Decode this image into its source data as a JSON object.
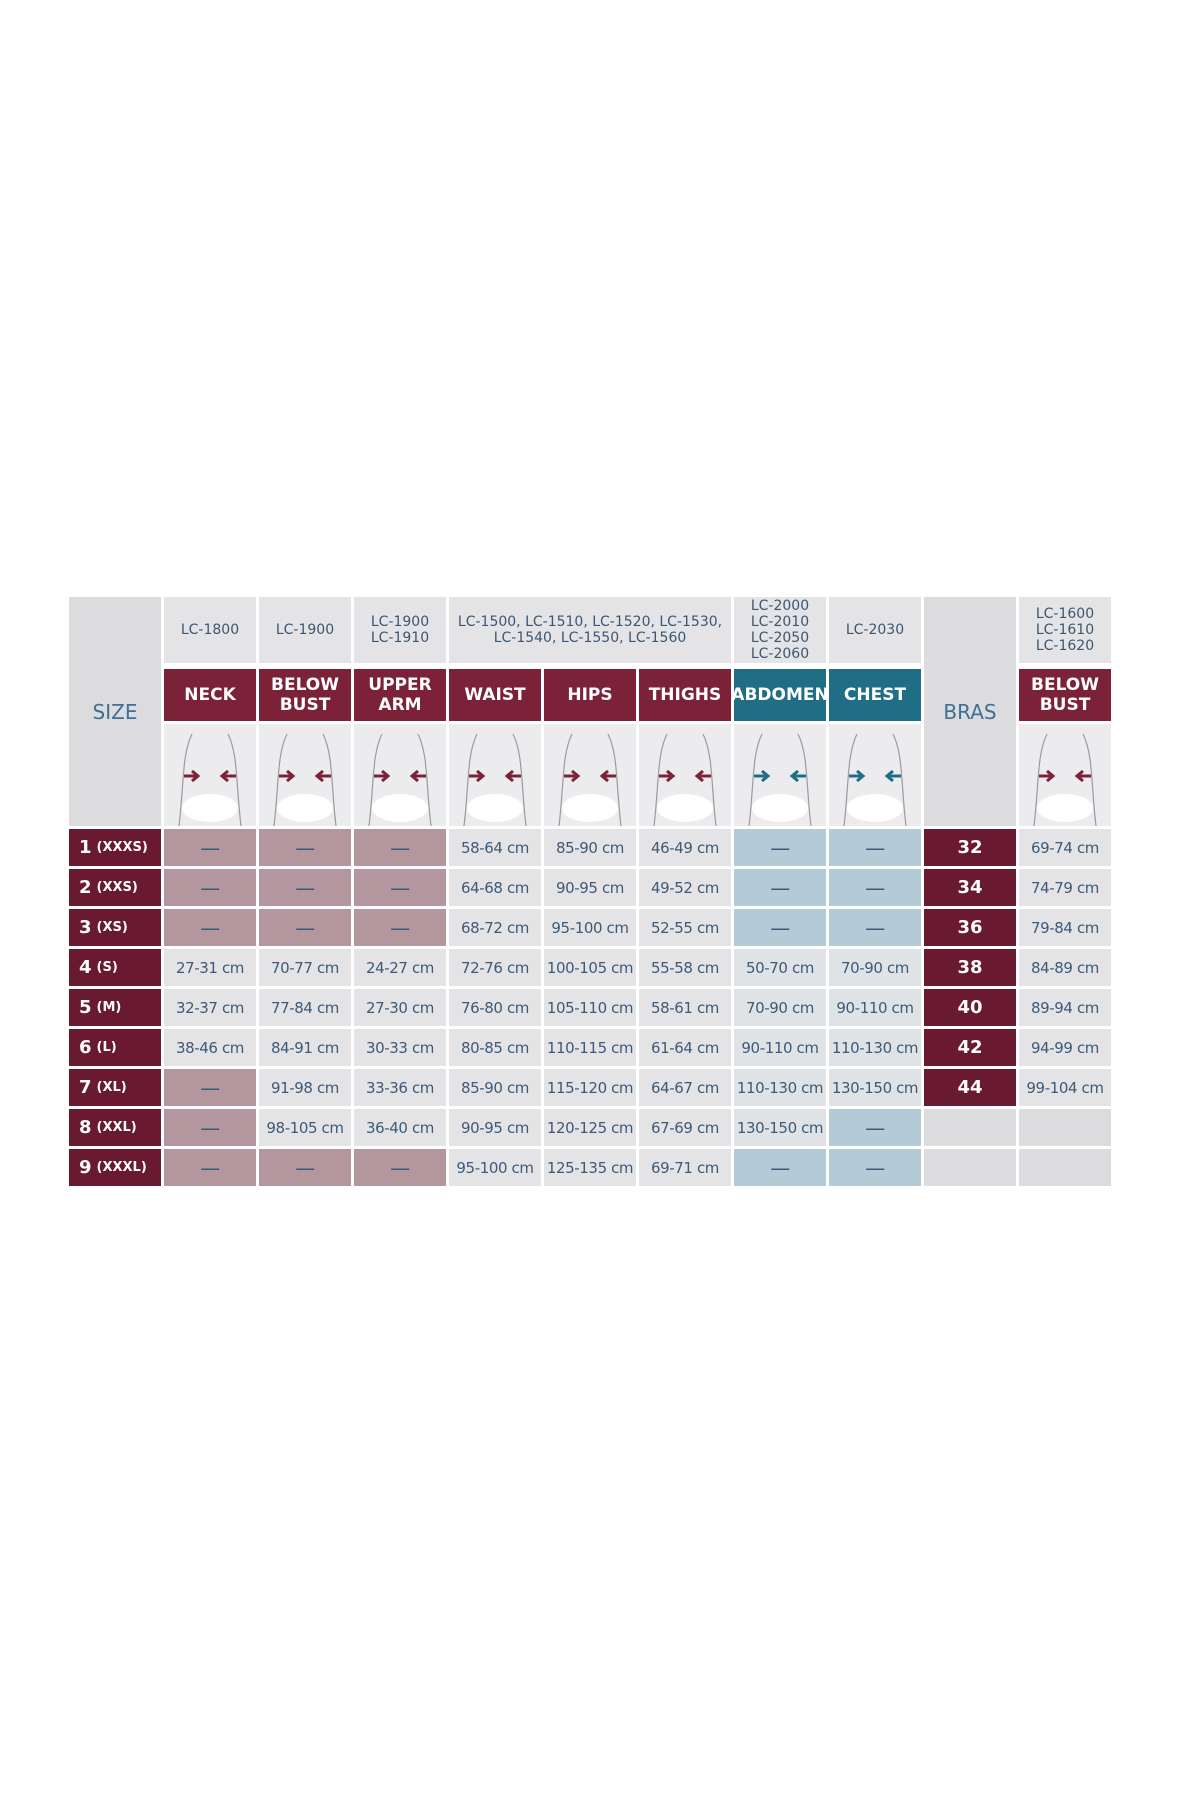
{
  "header": {
    "size_label": "SIZE",
    "bras_label": "BRAS"
  },
  "code_groups": [
    {
      "lines": [
        "LC-1800"
      ]
    },
    {
      "lines": [
        "LC-1900"
      ]
    },
    {
      "lines": [
        "LC-1900",
        "LC-1910"
      ]
    },
    {
      "lines": [
        "LC-1500, LC-1510, LC-1520, LC-1530,",
        "LC-1540, LC-1550, LC-1560"
      ]
    },
    {
      "lines": [
        "LC-2000",
        "LC-2010",
        "LC-2050",
        "LC-2060"
      ]
    },
    {
      "lines": [
        "LC-2030"
      ]
    },
    {
      "lines": [
        "LC-1600",
        "LC-1610",
        "LC-1620"
      ]
    }
  ],
  "columns": [
    {
      "label": [
        "NECK"
      ],
      "color": "#7b2138"
    },
    {
      "label": [
        "BELOW",
        "BUST"
      ],
      "color": "#7b2138"
    },
    {
      "label": [
        "UPPER",
        "ARM"
      ],
      "color": "#7b2138"
    },
    {
      "label": [
        "WAIST"
      ],
      "color": "#7b2138"
    },
    {
      "label": [
        "HIPS"
      ],
      "color": "#7b2138"
    },
    {
      "label": [
        "THIGHS"
      ],
      "color": "#7b2138"
    },
    {
      "label": [
        "ABDOMEN"
      ],
      "color": "#1f6e86"
    },
    {
      "label": [
        "CHEST"
      ],
      "color": "#1f6e86"
    },
    {
      "label": [
        "BELOW",
        "BUST"
      ],
      "color": "#7b2138"
    }
  ],
  "rows": [
    {
      "size": "1",
      "size_code": "(XXXS)",
      "cells": [
        "—",
        "—",
        "—",
        "58-64 cm",
        "85-90 cm",
        "46-49 cm",
        "—",
        "—"
      ],
      "bra": "32",
      "below_bust": "69-74 cm"
    },
    {
      "size": "2",
      "size_code": "(XXS)",
      "cells": [
        "—",
        "—",
        "—",
        "64-68 cm",
        "90-95 cm",
        "49-52 cm",
        "—",
        "—"
      ],
      "bra": "34",
      "below_bust": "74-79 cm"
    },
    {
      "size": "3",
      "size_code": "(XS)",
      "cells": [
        "—",
        "—",
        "—",
        "68-72 cm",
        "95-100 cm",
        "52-55 cm",
        "—",
        "—"
      ],
      "bra": "36",
      "below_bust": "79-84 cm"
    },
    {
      "size": "4",
      "size_code": "(S)",
      "cells": [
        "27-31 cm",
        "70-77 cm",
        "24-27 cm",
        "72-76 cm",
        "100-105 cm",
        "55-58 cm",
        "50-70 cm",
        "70-90 cm"
      ],
      "bra": "38",
      "below_bust": "84-89 cm"
    },
    {
      "size": "5",
      "size_code": "(M)",
      "cells": [
        "32-37 cm",
        "77-84 cm",
        "27-30 cm",
        "76-80 cm",
        "105-110 cm",
        "58-61 cm",
        "70-90 cm",
        "90-110 cm"
      ],
      "bra": "40",
      "below_bust": "89-94 cm"
    },
    {
      "size": "6",
      "size_code": "(L)",
      "cells": [
        "38-46 cm",
        "84-91 cm",
        "30-33 cm",
        "80-85 cm",
        "110-115 cm",
        "61-64 cm",
        "90-110 cm",
        "110-130 cm"
      ],
      "bra": "42",
      "below_bust": "94-99 cm"
    },
    {
      "size": "7",
      "size_code": "(XL)",
      "cells": [
        "—",
        "91-98 cm",
        "33-36 cm",
        "85-90 cm",
        "115-120 cm",
        "64-67 cm",
        "110-130 cm",
        "130-150 cm"
      ],
      "bra": "44",
      "below_bust": "99-104 cm"
    },
    {
      "size": "8",
      "size_code": "(XXL)",
      "cells": [
        "—",
        "98-105 cm",
        "36-40 cm",
        "90-95 cm",
        "120-125 cm",
        "67-69 cm",
        "130-150 cm",
        "—"
      ]
    },
    {
      "size": "9",
      "size_code": "(XXXL)",
      "cells": [
        "—",
        "—",
        "—",
        "95-100 cm",
        "125-135 cm",
        "69-71 cm",
        "—",
        "—"
      ]
    }
  ]
}
